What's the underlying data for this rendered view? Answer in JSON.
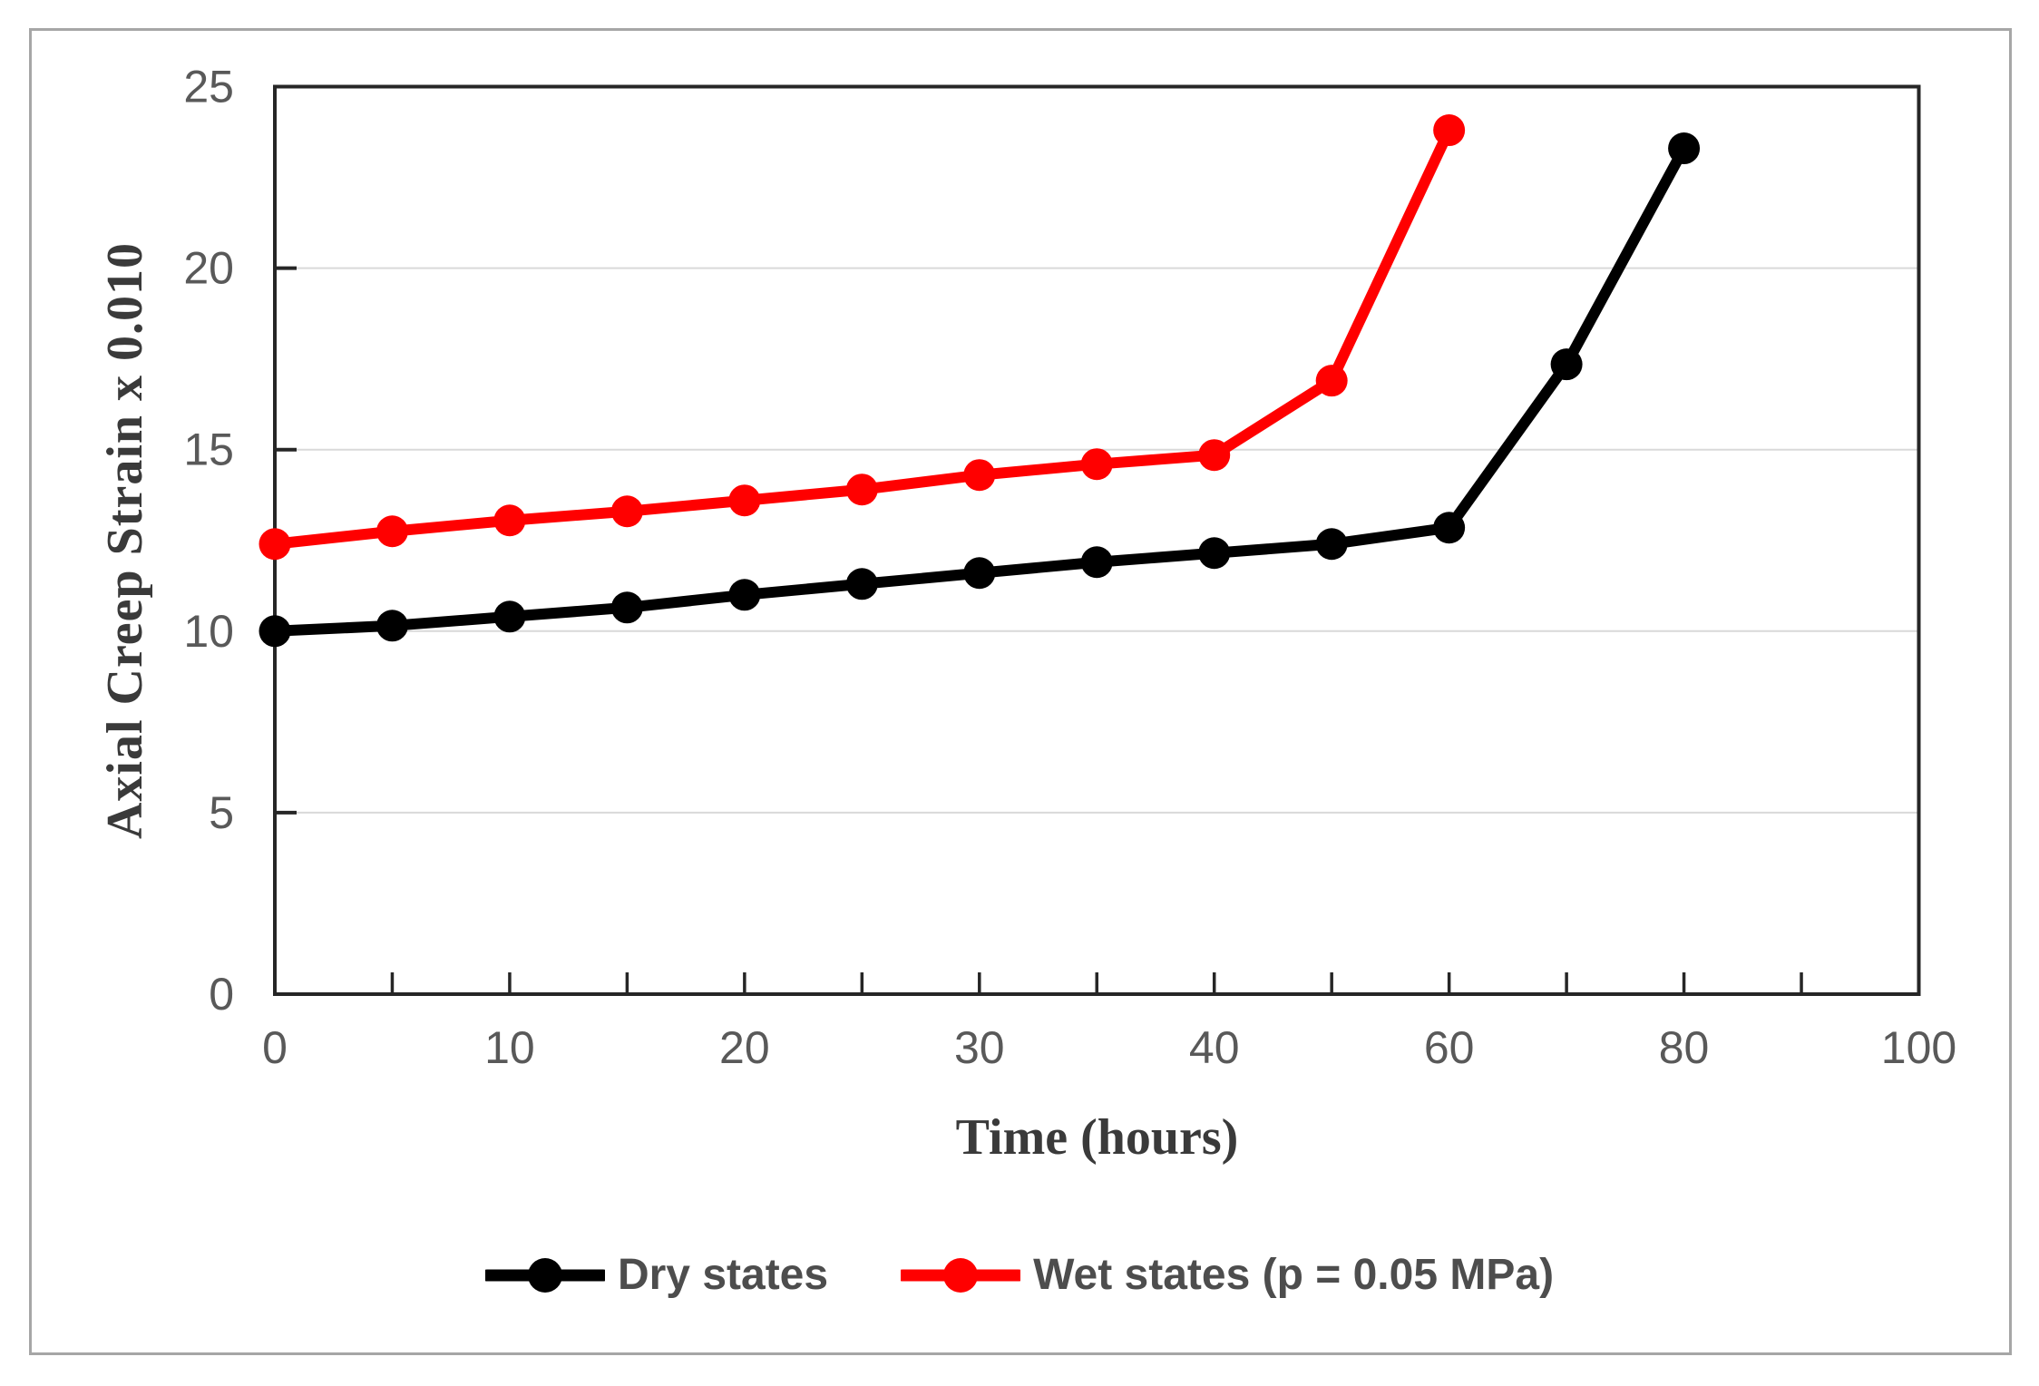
{
  "figure": {
    "background": "#ffffff",
    "border_color": "#a6a6a6"
  },
  "chart_data": {
    "type": "line",
    "title": "",
    "xlabel": "Time (hours)",
    "ylabel": "Axial Creep Strain x 0.010",
    "x_axis_type": "category",
    "categories": [
      0,
      5,
      10,
      15,
      20,
      25,
      30,
      35,
      40,
      50,
      60,
      70,
      80,
      90,
      100
    ],
    "x_tick_labels": [
      "0",
      "10",
      "20",
      "30",
      "40",
      "60",
      "80",
      "100"
    ],
    "x_tick_label_every": 2,
    "y_ticks": [
      0,
      5,
      10,
      15,
      20,
      25
    ],
    "ylim": [
      0,
      25
    ],
    "grid": "horizontal",
    "legend_position": "bottom",
    "series": [
      {
        "name": "Dry states",
        "color": "#000000",
        "x": [
          0,
          5,
          10,
          15,
          20,
          25,
          30,
          35,
          40,
          50,
          60,
          70,
          80
        ],
        "values": [
          10.0,
          10.15,
          10.4,
          10.65,
          11.0,
          11.3,
          11.6,
          11.9,
          12.15,
          12.4,
          12.85,
          17.35,
          23.3
        ]
      },
      {
        "name": "Wet states (p = 0.05 MPa)",
        "color": "#ff0000",
        "x": [
          0,
          5,
          10,
          15,
          20,
          25,
          30,
          35,
          40,
          50,
          60
        ],
        "values": [
          12.4,
          12.75,
          13.05,
          13.3,
          13.6,
          13.9,
          14.3,
          14.6,
          14.85,
          16.9,
          23.8
        ]
      }
    ],
    "colors": {
      "grid": "#d9d9d9",
      "axis": "#262626",
      "tick_label": "#595959",
      "axis_title": "#3a3a3a",
      "legend_text": "#4d4d4d"
    }
  }
}
